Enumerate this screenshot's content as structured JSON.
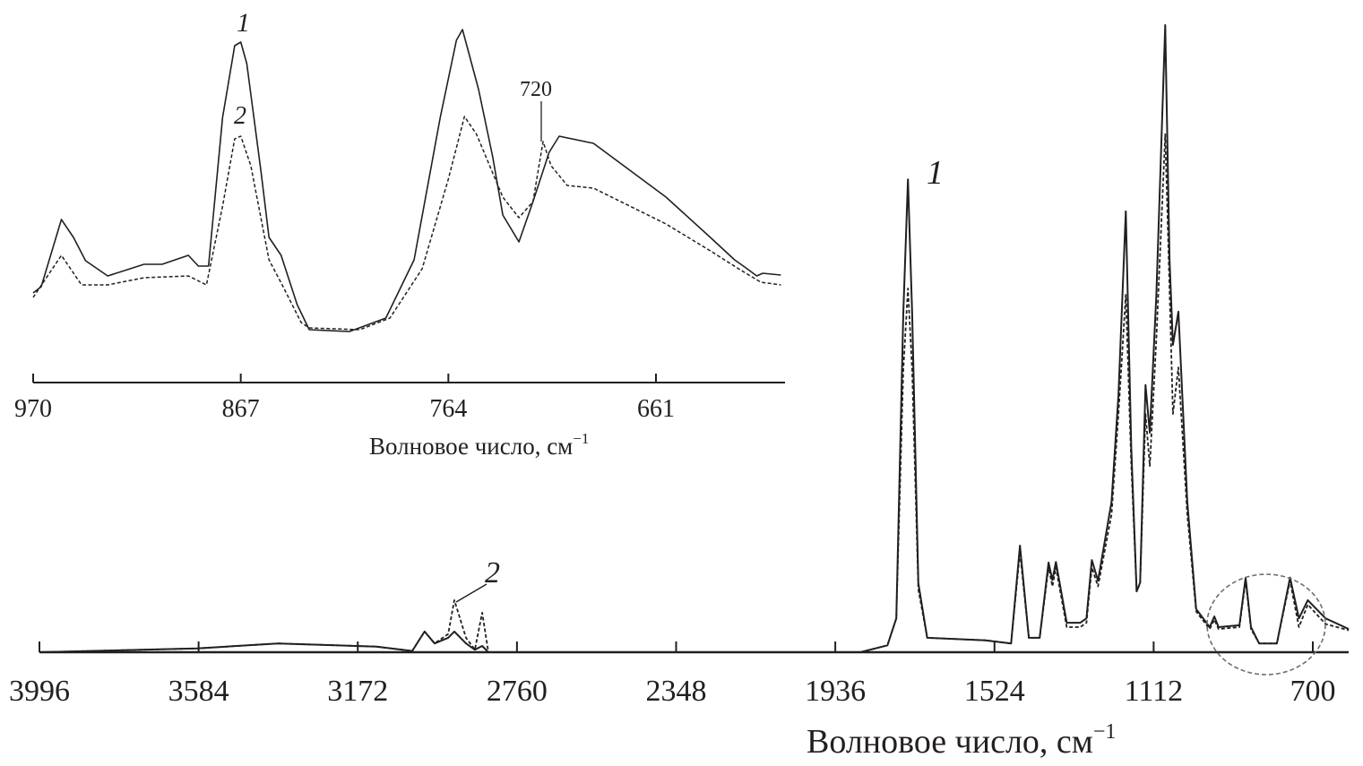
{
  "chart_data": [
    {
      "type": "line",
      "panel": "main",
      "xlabel": "Волновое число, см",
      "xlabel_sup": "−1",
      "x_reversed": true,
      "xlim": [
        3996,
        600
      ],
      "ylim": [
        0,
        100
      ],
      "grid": false,
      "y_axis_shown": false,
      "xticks": [
        "3996",
        "3584",
        "3172",
        "2760",
        "2348",
        "1936",
        "1524",
        "1112",
        "700"
      ],
      "annotations": {
        "label_1": "1",
        "label_2": "2"
      },
      "highlight": "dashed circle around 960–620 cm−1",
      "series": [
        {
          "name": "1",
          "style": "solid",
          "points": [
            [
              3996,
              0
            ],
            [
              3588,
              0.6
            ],
            [
              3379,
              1.4
            ],
            [
              3124,
              0.9
            ],
            [
              3031,
              0.2
            ],
            [
              2999,
              3.3
            ],
            [
              2973,
              1.4
            ],
            [
              2938,
              2.3
            ],
            [
              2922,
              3.3
            ],
            [
              2892,
              1.4
            ],
            [
              2869,
              0.4
            ],
            [
              2850,
              1
            ],
            [
              2834,
              0
            ],
            [
              1871,
              0
            ],
            [
              1801,
              1.1
            ],
            [
              1778,
              5.4
            ],
            [
              1760,
              54
            ],
            [
              1748,
              75.4
            ],
            [
              1737,
              54
            ],
            [
              1721,
              11
            ],
            [
              1698,
              2.3
            ],
            [
              1547,
              1.9
            ],
            [
              1481,
              1.4
            ],
            [
              1458,
              17
            ],
            [
              1435,
              2.3
            ],
            [
              1407,
              2.3
            ],
            [
              1384,
              14.3
            ],
            [
              1374,
              11.5
            ],
            [
              1365,
              14.4
            ],
            [
              1337,
              4.7
            ],
            [
              1302,
              4.7
            ],
            [
              1286,
              5.4
            ],
            [
              1272,
              14.7
            ],
            [
              1256,
              11.4
            ],
            [
              1221,
              24
            ],
            [
              1203,
              41
            ],
            [
              1184,
              70.3
            ],
            [
              1170,
              32.6
            ],
            [
              1156,
              9.7
            ],
            [
              1147,
              11.1
            ],
            [
              1133,
              42.6
            ],
            [
              1122,
              35
            ],
            [
              1105,
              57
            ],
            [
              1082,
              100
            ],
            [
              1071,
              62.6
            ],
            [
              1062,
              49
            ],
            [
              1048,
              54.3
            ],
            [
              1025,
              24
            ],
            [
              1002,
              6.9
            ],
            [
              967,
              4
            ],
            [
              955,
              5.7
            ],
            [
              944,
              4
            ],
            [
              890,
              4.3
            ],
            [
              874,
              11.9
            ],
            [
              860,
              4
            ],
            [
              839,
              1.4
            ],
            [
              793,
              1.4
            ],
            [
              759,
              11.9
            ],
            [
              736,
              5.4
            ],
            [
              713,
              8.3
            ],
            [
              667,
              5.4
            ],
            [
              607,
              3.7
            ]
          ]
        },
        {
          "name": "2",
          "style": "dashed",
          "points": [
            [
              3996,
              0
            ],
            [
              3588,
              0.6
            ],
            [
              3379,
              1.4
            ],
            [
              3124,
              0.9
            ],
            [
              3031,
              0.2
            ],
            [
              2999,
              3.3
            ],
            [
              2973,
              1.4
            ],
            [
              2938,
              2.9
            ],
            [
              2922,
              8.3
            ],
            [
              2892,
              2.3
            ],
            [
              2869,
              0.4
            ],
            [
              2850,
              6.3
            ],
            [
              2834,
              0
            ],
            [
              1871,
              0
            ],
            [
              1801,
              1.1
            ],
            [
              1778,
              5.4
            ],
            [
              1760,
              45
            ],
            [
              1748,
              58
            ],
            [
              1737,
              45
            ],
            [
              1721,
              10
            ],
            [
              1698,
              2.3
            ],
            [
              1547,
              1.9
            ],
            [
              1481,
              1.4
            ],
            [
              1458,
              16
            ],
            [
              1435,
              2.3
            ],
            [
              1407,
              2.3
            ],
            [
              1384,
              13.5
            ],
            [
              1374,
              10.5
            ],
            [
              1365,
              13.5
            ],
            [
              1337,
              4
            ],
            [
              1302,
              4
            ],
            [
              1286,
              4.7
            ],
            [
              1272,
              13.5
            ],
            [
              1256,
              10.5
            ],
            [
              1221,
              22
            ],
            [
              1203,
              38
            ],
            [
              1184,
              57
            ],
            [
              1170,
              30
            ],
            [
              1156,
              9.7
            ],
            [
              1147,
              11
            ],
            [
              1133,
              38
            ],
            [
              1122,
              29.7
            ],
            [
              1105,
              50
            ],
            [
              1082,
              82.6
            ],
            [
              1071,
              58
            ],
            [
              1062,
              38
            ],
            [
              1048,
              45.4
            ],
            [
              1025,
              22
            ],
            [
              1002,
              6.5
            ],
            [
              967,
              3.7
            ],
            [
              955,
              5.2
            ],
            [
              944,
              3.7
            ],
            [
              890,
              4
            ],
            [
              874,
              11.4
            ],
            [
              860,
              3.7
            ],
            [
              839,
              1.4
            ],
            [
              793,
              1.4
            ],
            [
              759,
              11.4
            ],
            [
              736,
              4
            ],
            [
              713,
              7.6
            ],
            [
              667,
              4.5
            ],
            [
              607,
              3.5
            ]
          ]
        }
      ]
    },
    {
      "type": "line",
      "panel": "inset",
      "xlabel": "Волновое число, см",
      "xlabel_sup": "−1",
      "x_reversed": true,
      "xlim": [
        970,
        597
      ],
      "ylim": [
        0,
        100
      ],
      "grid": false,
      "y_axis_shown": false,
      "xticks": [
        "970",
        "867",
        "764",
        "661"
      ],
      "annotations": {
        "label_1": "1",
        "label_2": "2",
        "peak_label": "720"
      },
      "series": [
        {
          "name": "1",
          "style": "solid",
          "points": [
            [
              970,
              25
            ],
            [
              966,
              26.75
            ],
            [
              956,
              45.5
            ],
            [
              950,
              40.5
            ],
            [
              944,
              34
            ],
            [
              933,
              29.75
            ],
            [
              915,
              33
            ],
            [
              906,
              33
            ],
            [
              893,
              35.5
            ],
            [
              888,
              32.5
            ],
            [
              883,
              32.5
            ],
            [
              876,
              74
            ],
            [
              870,
              94
            ],
            [
              867,
              95
            ],
            [
              864,
              89
            ],
            [
              857,
              59
            ],
            [
              853,
              40.5
            ],
            [
              847,
              35.5
            ],
            [
              839,
              21.75
            ],
            [
              833,
              14.75
            ],
            [
              813,
              14.25
            ],
            [
              795,
              18
            ],
            [
              781,
              34.25
            ],
            [
              768,
              74
            ],
            [
              760,
              95.5
            ],
            [
              757,
              98.5
            ],
            [
              749,
              81.75
            ],
            [
              742,
              63
            ],
            [
              737,
              46.75
            ],
            [
              729,
              39.25
            ],
            [
              722,
              50.5
            ],
            [
              714,
              64.25
            ],
            [
              709,
              68.75
            ],
            [
              692,
              66.75
            ],
            [
              674,
              59.25
            ],
            [
              656,
              51.75
            ],
            [
              634,
              40.5
            ],
            [
              622,
              34.25
            ],
            [
              617,
              32.25
            ],
            [
              611,
              29.75
            ],
            [
              608,
              30.5
            ],
            [
              599,
              30
            ]
          ]
        },
        {
          "name": "2",
          "style": "dashed",
          "points": [
            [
              970,
              23.75
            ],
            [
              956,
              35.5
            ],
            [
              946,
              27.25
            ],
            [
              933,
              27.25
            ],
            [
              915,
              29.25
            ],
            [
              893,
              29.75
            ],
            [
              884,
              27.25
            ],
            [
              876,
              49.25
            ],
            [
              870,
              68
            ],
            [
              867,
              68.75
            ],
            [
              862,
              60.5
            ],
            [
              853,
              34.25
            ],
            [
              846,
              26.75
            ],
            [
              837,
              16.75
            ],
            [
              833,
              15.25
            ],
            [
              808,
              14.75
            ],
            [
              793,
              18
            ],
            [
              777,
              31.75
            ],
            [
              764,
              56.75
            ],
            [
              756,
              74.25
            ],
            [
              750,
              69.25
            ],
            [
              737,
              51.75
            ],
            [
              729,
              46
            ],
            [
              722,
              50.5
            ],
            [
              717,
              67.25
            ],
            [
              713,
              60.5
            ],
            [
              705,
              55
            ],
            [
              692,
              54.25
            ],
            [
              674,
              49.25
            ],
            [
              656,
              44.25
            ],
            [
              634,
              36.75
            ],
            [
              620,
              31.75
            ],
            [
              609,
              28
            ],
            [
              599,
              27.25
            ]
          ]
        }
      ]
    }
  ],
  "colors": {
    "ink": "#231f20",
    "circle": "#6d6e70"
  }
}
